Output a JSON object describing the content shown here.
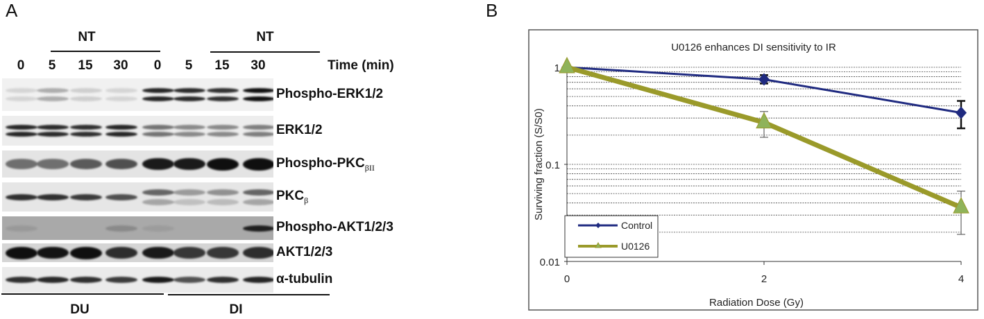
{
  "panel_a": {
    "letter": "A",
    "group_top_labels": [
      "NT",
      "NT"
    ],
    "time_label": "Time (min)",
    "lanes": [
      "0",
      "5",
      "15",
      "30",
      "0",
      "5",
      "15",
      "30"
    ],
    "cell_lines": [
      "DU",
      "DI"
    ],
    "blots": [
      {
        "label": "Phospho-ERK1/2",
        "sub": "",
        "bg": "#f1f1f1",
        "doublet": true,
        "intensity": [
          0.12,
          0.3,
          0.15,
          0.12,
          0.9,
          0.88,
          0.85,
          1.0
        ]
      },
      {
        "label": "ERK1/2",
        "sub": "",
        "bg": "#ededed",
        "doublet": true,
        "intensity": [
          0.9,
          0.88,
          0.86,
          0.9,
          0.55,
          0.45,
          0.45,
          0.5
        ]
      },
      {
        "label": "Phospho-PKC",
        "sub": "βII",
        "bg": "#e4e4e4",
        "doublet": false,
        "intensity": [
          0.55,
          0.55,
          0.65,
          0.7,
          0.95,
          0.95,
          1.0,
          1.0
        ]
      },
      {
        "label": "PKC",
        "sub": "β",
        "bg": "#e6e6e6",
        "doublet": false,
        "intensity": [
          0.85,
          0.85,
          0.8,
          0.7,
          0.6,
          0.35,
          0.4,
          0.6
        ]
      },
      {
        "label": "Phospho-AKT1/2/3",
        "sub": "",
        "bg": "#a9a9a9",
        "doublet": false,
        "intensity": [
          0.1,
          0.0,
          0.0,
          0.2,
          0.08,
          0.0,
          0.0,
          0.9
        ]
      },
      {
        "label": "AKT1/2/3",
        "sub": "",
        "bg": "#d5d5d5",
        "doublet": false,
        "intensity": [
          1.0,
          0.98,
          1.0,
          0.85,
          0.95,
          0.8,
          0.8,
          0.85
        ]
      },
      {
        "label": "α-tubulin",
        "sub": "",
        "bg": "#ebebeb",
        "doublet": false,
        "intensity": [
          0.85,
          0.88,
          0.85,
          0.8,
          0.95,
          0.7,
          0.85,
          0.9
        ]
      }
    ]
  },
  "panel_b": {
    "letter": "B"
  },
  "chart_data": {
    "type": "line",
    "title": "U0126 enhances DI sensitivity to IR",
    "xlabel": "Radiation Dose (Gy)",
    "ylabel": "Surviving fraction (S/S0)",
    "x_ticks": [
      "0",
      "2",
      "4"
    ],
    "y_ticks": [
      "1",
      "0.1",
      "0.01"
    ],
    "xlim": [
      0,
      4
    ],
    "ylim": [
      0.01,
      1
    ],
    "y_scale": "log",
    "grid": "dashed minor horizontal",
    "legend_position": "bottom-left",
    "x": [
      0,
      2,
      4
    ],
    "series": [
      {
        "name": "Control",
        "color": "#1f2a80",
        "marker": "diamond",
        "values": [
          1.0,
          0.75,
          0.34
        ],
        "error_low": [
          1.0,
          0.68,
          0.235
        ],
        "error_high": [
          1.0,
          0.83,
          0.45
        ]
      },
      {
        "name": "U0126",
        "color": "#9a9a2a",
        "marker_fill": "#8fb35a",
        "marker": "triangle",
        "values": [
          1.0,
          0.27,
          0.036
        ],
        "error_low": [
          1.0,
          0.19,
          0.019
        ],
        "error_high": [
          1.0,
          0.35,
          0.053
        ]
      }
    ]
  }
}
